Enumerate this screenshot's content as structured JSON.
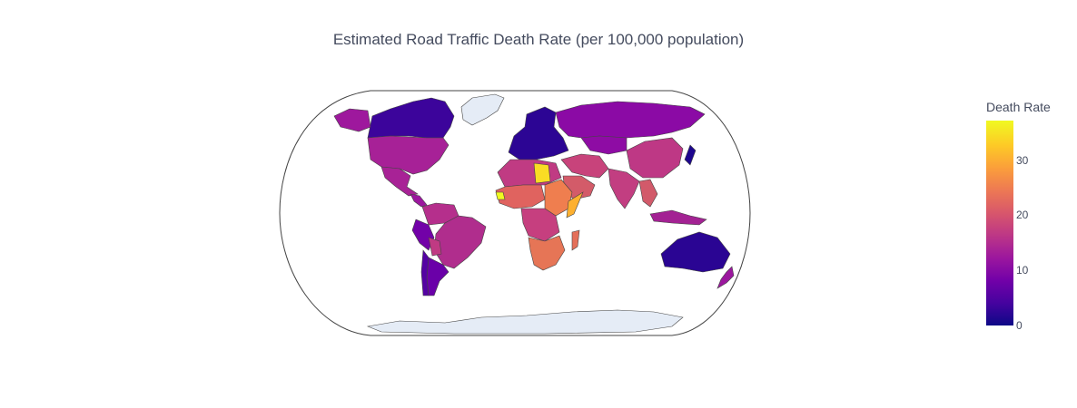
{
  "title": "Estimated Road Traffic Death Rate (per 100,000 population)",
  "colorbar": {
    "title": "Death Rate",
    "ticks": [
      "0",
      "10",
      "20",
      "30"
    ],
    "range": [
      0,
      37
    ],
    "colorscale": [
      "#0d0887",
      "#46039f",
      "#7201a8",
      "#9c179e",
      "#bd3786",
      "#d8576b",
      "#ed7953",
      "#fb9f3a",
      "#fdca26",
      "#f0f921"
    ]
  },
  "map": {
    "projection": "natural earth",
    "no_data_color": "#e5ecf6",
    "border_color": "#444444"
  }
}
